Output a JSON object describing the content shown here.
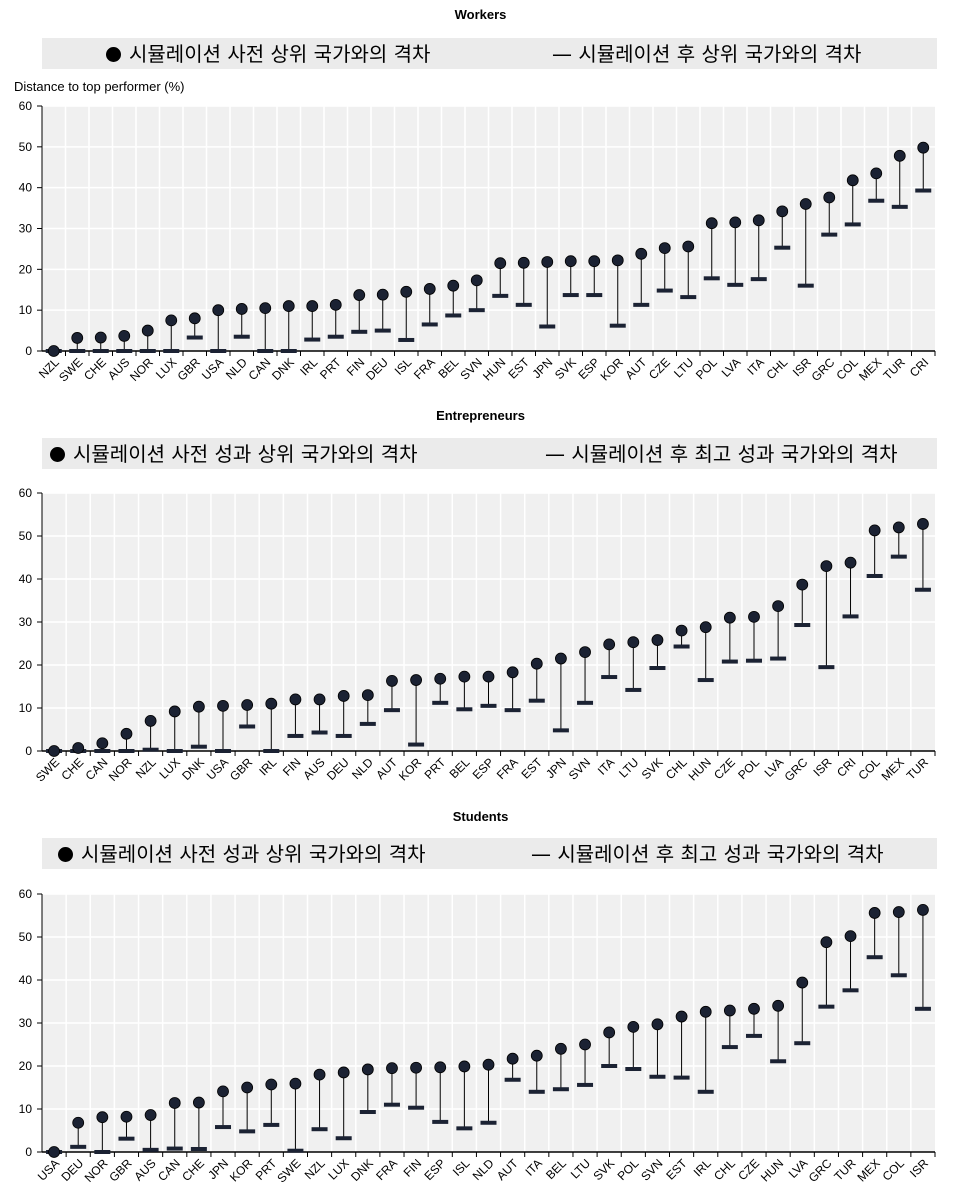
{
  "chart_data": [
    {
      "type": "dot-range",
      "title": "Workers",
      "legend": {
        "before_label": "시뮬레이션 사전 상위 국가와의 격차",
        "after_label": "— 시뮬레이션 후 상위 국가와의 격차"
      },
      "ylabel": "Distance to top performer (%)",
      "ylim": [
        0,
        60
      ],
      "yticks": [
        "0",
        "10",
        "20",
        "30",
        "40",
        "50",
        "60"
      ],
      "categories": [
        "NZL",
        "SWE",
        "CHE",
        "AUS",
        "NOR",
        "LUX",
        "GBR",
        "USA",
        "NLD",
        "CAN",
        "DNK",
        "IRL",
        "PRT",
        "FIN",
        "DEU",
        "ISL",
        "FRA",
        "BEL",
        "SVN",
        "HUN",
        "EST",
        "JPN",
        "SVK",
        "ESP",
        "KOR",
        "AUT",
        "CZE",
        "LTU",
        "POL",
        "LVA",
        "ITA",
        "CHL",
        "ISR",
        "GRC",
        "COL",
        "MEX",
        "TUR",
        "CRI"
      ],
      "before": [
        0,
        3.2,
        3.3,
        3.7,
        5,
        7.5,
        8,
        10,
        10.3,
        10.5,
        11,
        11,
        11.3,
        13.7,
        13.8,
        14.5,
        15.2,
        16,
        17.3,
        21.5,
        21.6,
        21.8,
        22,
        22,
        22.2,
        23.8,
        25.2,
        25.6,
        31.3,
        31.5,
        32,
        34.2,
        36,
        37.6,
        41.8,
        43.5,
        47.8,
        49.8
      ],
      "after": [
        0,
        0,
        0,
        0,
        0,
        0,
        3.3,
        0,
        3.5,
        0,
        0,
        2.8,
        3.5,
        4.7,
        5,
        2.7,
        6.5,
        8.7,
        10,
        13.5,
        11.3,
        6,
        13.7,
        13.7,
        6.2,
        11.3,
        14.8,
        13.2,
        17.8,
        16.2,
        17.6,
        25.3,
        16,
        28.5,
        31,
        36.8,
        35.3,
        39.3
      ],
      "colors": {
        "background": "#f0f0f0",
        "grid": "#ffffff",
        "marker": "#1b2233",
        "line": "#000000",
        "legend_bg": "#ebebeb"
      }
    },
    {
      "type": "dot-range",
      "title": "Entrepreneurs",
      "legend": {
        "before_label": "시뮬레이션 사전 성과 상위 국가와의 격차",
        "after_label": "— 시뮬레이션 후 최고 성과 국가와의 격차"
      },
      "ylabel": "",
      "ylim": [
        0,
        60
      ],
      "yticks": [
        "0",
        "10",
        "20",
        "30",
        "40",
        "50",
        "60"
      ],
      "categories": [
        "SWE",
        "CHE",
        "CAN",
        "NOR",
        "NZL",
        "LUX",
        "DNK",
        "USA",
        "GBR",
        "IRL",
        "FIN",
        "AUS",
        "DEU",
        "NLD",
        "AUT",
        "KOR",
        "PRT",
        "BEL",
        "ESP",
        "FRA",
        "EST",
        "JPN",
        "SVN",
        "ITA",
        "LTU",
        "SVK",
        "CHL",
        "HUN",
        "CZE",
        "POL",
        "LVA",
        "GRC",
        "ISR",
        "CRI",
        "COL",
        "MEX",
        "TUR"
      ],
      "before": [
        0,
        0.7,
        1.8,
        4,
        7,
        9.2,
        10.3,
        10.5,
        10.7,
        11,
        12,
        12,
        12.8,
        13,
        16.3,
        16.5,
        16.8,
        17.3,
        17.3,
        18.3,
        20.3,
        21.5,
        23,
        24.8,
        25.3,
        25.8,
        28,
        28.8,
        31,
        31.2,
        33.7,
        38.7,
        43,
        43.8,
        51.3,
        52,
        52.8
      ],
      "after": [
        0,
        0,
        0,
        0,
        0.3,
        0,
        1,
        0,
        5.7,
        0,
        3.5,
        4.3,
        3.5,
        6.3,
        9.5,
        1.5,
        11.2,
        9.7,
        10.5,
        9.5,
        11.7,
        4.8,
        11.2,
        17.2,
        14.2,
        19.3,
        24.3,
        16.5,
        20.8,
        21,
        21.5,
        29.3,
        19.5,
        31.3,
        40.7,
        45.2,
        37.5
      ],
      "colors": {
        "background": "#f0f0f0",
        "grid": "#ffffff",
        "marker": "#1b2233",
        "line": "#000000",
        "legend_bg": "#ebebeb"
      }
    },
    {
      "type": "dot-range",
      "title": "Students",
      "legend": {
        "before_label": "시뮬레이션 사전 성과 상위 국가와의 격차",
        "after_label": "— 시뮬레이션 후 최고 성과 국가와의 격차"
      },
      "ylabel": "",
      "ylim": [
        0,
        60
      ],
      "yticks": [
        "0",
        "10",
        "20",
        "30",
        "40",
        "50",
        "60"
      ],
      "categories": [
        "USA",
        "DEU",
        "NOR",
        "GBR",
        "AUS",
        "CAN",
        "CHE",
        "JPN",
        "KOR",
        "PRT",
        "SWE",
        "NZL",
        "LUX",
        "DNK",
        "FRA",
        "FIN",
        "ESP",
        "ISL",
        "NLD",
        "AUT",
        "ITA",
        "BEL",
        "LTU",
        "SVK",
        "POL",
        "SVN",
        "EST",
        "IRL",
        "CHL",
        "CZE",
        "HUN",
        "LVA",
        "GRC",
        "TUR",
        "MEX",
        "COL",
        "ISR"
      ],
      "before": [
        0,
        6.8,
        8.1,
        8.2,
        8.6,
        11.4,
        11.5,
        14.1,
        15,
        15.7,
        15.9,
        18,
        18.5,
        19.2,
        19.5,
        19.6,
        19.7,
        19.9,
        20.3,
        21.7,
        22.4,
        24,
        25,
        27.8,
        29.1,
        29.7,
        31.5,
        32.6,
        32.9,
        33.3,
        34,
        39.4,
        48.8,
        50.2,
        55.6,
        55.8,
        56.3
      ],
      "after": [
        0,
        1.2,
        0,
        3.1,
        0.5,
        0.8,
        0.7,
        5.8,
        4.8,
        6.3,
        0.3,
        5.3,
        3.2,
        9.3,
        11,
        10.3,
        7,
        5.5,
        6.8,
        16.8,
        14,
        14.6,
        15.6,
        20,
        19.3,
        17.5,
        17.3,
        14,
        24.4,
        27,
        21.1,
        25.3,
        33.8,
        37.6,
        45.3,
        41.1,
        33.3
      ],
      "colors": {
        "background": "#f0f0f0",
        "grid": "#ffffff",
        "marker": "#1b2233",
        "line": "#000000",
        "legend_bg": "#ebebeb"
      }
    }
  ]
}
